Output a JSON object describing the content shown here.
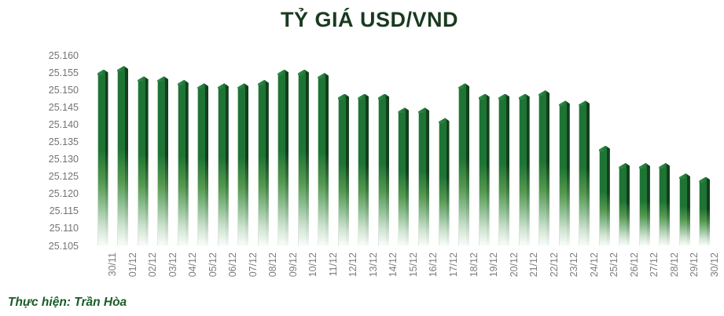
{
  "title": "TỶ GIÁ USD/VND",
  "footer": "Thực hiện: Trần Hòa",
  "colors": {
    "title_text": "#1a3a20",
    "footer_text": "#185c28",
    "axis_text": "#737373",
    "bar_main": "#1e7434",
    "bar_side_dark": "#123f1c",
    "bar_cap": "#2a8540",
    "background": "#ffffff"
  },
  "chart_data": {
    "type": "bar",
    "title": "TỶ GIÁ USD/VND",
    "categories": [
      "30/11",
      "01/12",
      "02/12",
      "03/12",
      "04/12",
      "05/12",
      "06/12",
      "07/12",
      "08/12",
      "09/12",
      "10/12",
      "11/12",
      "12/12",
      "13/12",
      "14/12",
      "15/12",
      "16/12",
      "17/12",
      "18/12",
      "19/12",
      "20/12",
      "21/12",
      "22/12",
      "23/12",
      "24/12",
      "25/12",
      "26/12",
      "27/12",
      "28/12",
      "29/12",
      "30/12"
    ],
    "values": [
      25155,
      25156,
      25153,
      25153,
      25152,
      25151,
      25151,
      25151,
      25152,
      25155,
      25155,
      25154,
      25148,
      25148,
      25148,
      25144,
      25144,
      25141,
      25151,
      25148,
      25148,
      25148,
      25149,
      25146,
      25146,
      25133,
      25128,
      25128,
      25128,
      25125,
      25124
    ],
    "xlabel": "",
    "ylabel": "",
    "ylim": [
      25105,
      25160
    ],
    "ytick_step": 5,
    "ytick_labels": [
      "25.105",
      "25.110",
      "25.115",
      "25.120",
      "25.125",
      "25.130",
      "25.135",
      "25.140",
      "25.145",
      "25.150",
      "25.155",
      "25.160"
    ],
    "x_tick_rotation": 90,
    "grid": false,
    "legend": "none",
    "number_format": "thousands-dot",
    "bar_style": "green-3d-gradient-fade-to-white"
  }
}
